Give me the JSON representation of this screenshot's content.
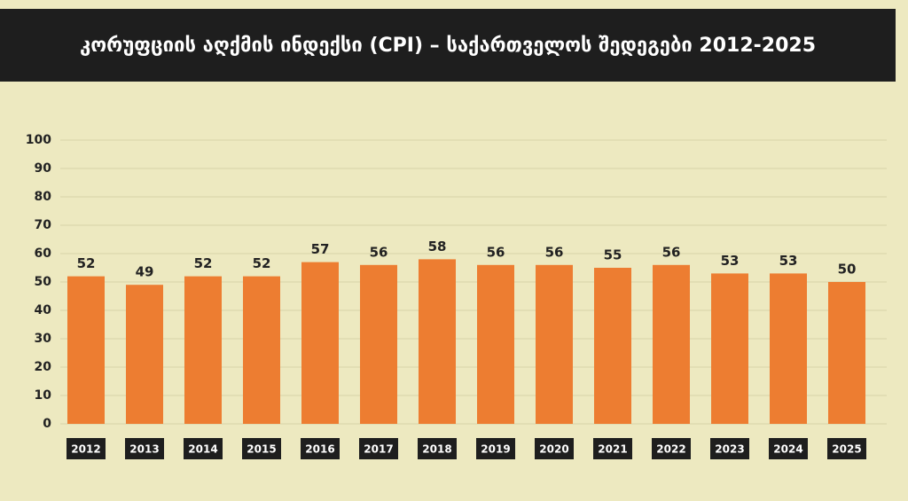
{
  "chart_data": {
    "type": "bar",
    "title": "კორუფციის აღქმის ინდექსი (CPI) – საქართველოს შედეგები 2012-2025",
    "categories": [
      "2012",
      "2013",
      "2014",
      "2015",
      "2016",
      "2017",
      "2018",
      "2019",
      "2020",
      "2021",
      "2022",
      "2023",
      "2024",
      "2025"
    ],
    "values": [
      52,
      49,
      52,
      52,
      57,
      56,
      58,
      56,
      56,
      55,
      56,
      53,
      53,
      50
    ],
    "color": "#ed7d31",
    "ylim": [
      0,
      100
    ],
    "yticks": [
      0,
      10,
      20,
      30,
      40,
      50,
      60,
      70,
      80,
      90,
      100
    ],
    "grid": true
  }
}
